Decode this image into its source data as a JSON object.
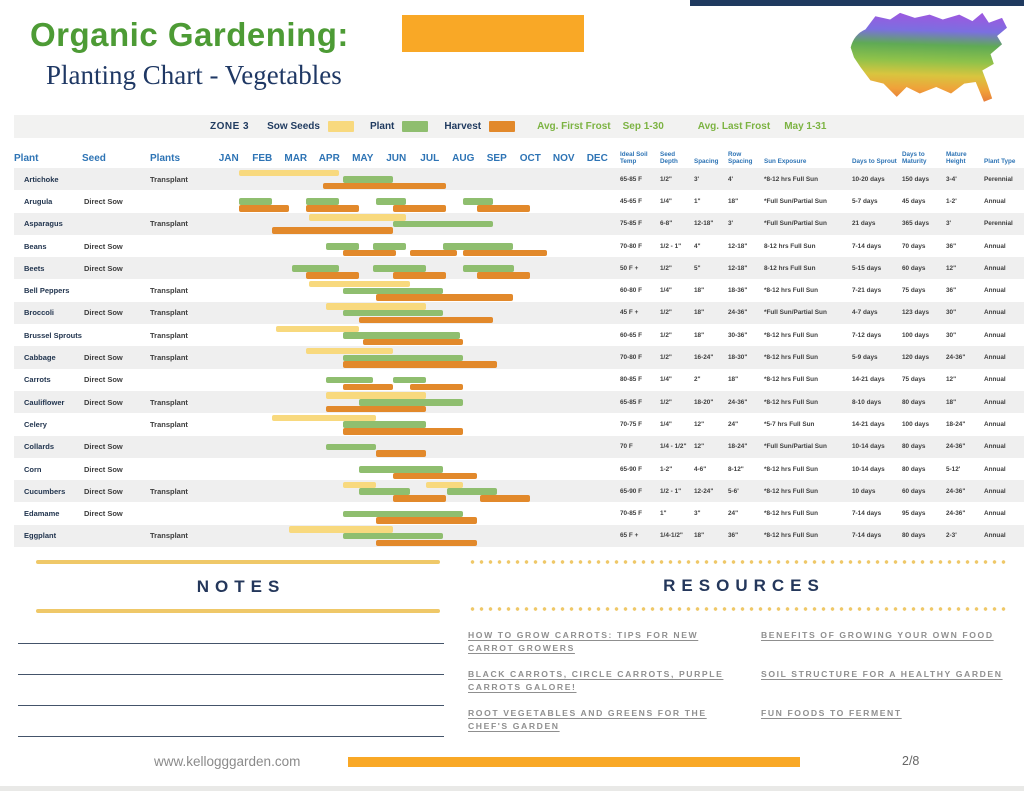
{
  "header": {
    "title": "Organic Gardening:",
    "subtitle": "Planting Chart - Vegetables"
  },
  "legend": {
    "zone": "ZONE 3",
    "sow_label": "Sow Seeds",
    "plant_label": "Plant",
    "harvest_label": "Harvest",
    "first_frost_label": "Avg. First Frost",
    "first_frost_value": "Sep 1-30",
    "last_frost_label": "Avg. Last Frost",
    "last_frost_value": "May 1-31"
  },
  "columns": {
    "left": [
      "Plant",
      "Seed",
      "Plants"
    ],
    "months": [
      "JAN",
      "FEB",
      "MAR",
      "APR",
      "MAY",
      "JUN",
      "JUL",
      "AUG",
      "SEP",
      "OCT",
      "NOV",
      "DEC"
    ],
    "right": [
      "Ideal Soil Temp",
      "Seed Depth",
      "Spacing",
      "Row Spacing",
      "Sun Exposure",
      "Days to Sprout",
      "Days to Maturity",
      "Mature Height",
      "Plant Type"
    ]
  },
  "colors": {
    "sow": "#f8d97e",
    "plant": "#8fbe6f",
    "harvest": "#e2892b",
    "accent_orange": "#f9a826",
    "title_green": "#4d9b35",
    "navy": "#1f3a5f",
    "header_blue": "#2e74b5",
    "frost_green": "#7cb342"
  },
  "rows": [
    {
      "name": "Artichoke",
      "seed": "",
      "plants": "Transplant",
      "temp": "65-85 F",
      "depth": "1/2\"",
      "spacing": "3'",
      "row_spacing": "4'",
      "sun": "*8-12 hrs Full Sun",
      "sprout": "10-20 days",
      "maturity": "150 days",
      "height": "3-4'",
      "type": "Perennial",
      "bars": [
        [
          "sow",
          0.8,
          3.8
        ],
        [
          "plant",
          3.9,
          5.4
        ],
        [
          "harvest",
          3.3,
          7.0
        ]
      ]
    },
    {
      "name": "Arugula",
      "seed": "Direct Sow",
      "plants": "",
      "temp": "45-65 F",
      "depth": "1/4\"",
      "spacing": "1\"",
      "row_spacing": "18\"",
      "sun": "*Full Sun/Partial Sun",
      "sprout": "5-7 days",
      "maturity": "45 days",
      "height": "1-2'",
      "type": "Annual",
      "bars": [
        [
          "plant",
          0.8,
          1.8
        ],
        [
          "plant",
          2.8,
          3.8
        ],
        [
          "plant",
          4.9,
          5.8
        ],
        [
          "plant",
          7.5,
          8.4
        ],
        [
          "harvest",
          0.8,
          2.3
        ],
        [
          "harvest",
          2.8,
          4.4
        ],
        [
          "harvest",
          5.4,
          7.0
        ],
        [
          "harvest",
          7.9,
          9.5
        ]
      ]
    },
    {
      "name": "Asparagus",
      "seed": "",
      "plants": "Transplant",
      "temp": "75-85 F",
      "depth": "6-8\"",
      "spacing": "12-18\"",
      "row_spacing": "3'",
      "sun": "*Full Sun/Partial Sun",
      "sprout": "21 days",
      "maturity": "365 days",
      "height": "3'",
      "type": "Perennial",
      "bars": [
        [
          "sow",
          2.9,
          5.8
        ],
        [
          "plant",
          5.4,
          8.4
        ],
        [
          "harvest",
          1.8,
          5.4
        ]
      ]
    },
    {
      "name": "Beans",
      "seed": "Direct Sow",
      "plants": "",
      "temp": "70-80 F",
      "depth": "1/2 - 1\"",
      "spacing": "4\"",
      "row_spacing": "12-18\"",
      "sun": "8-12 hrs Full Sun",
      "sprout": "7-14 days",
      "maturity": "70 days",
      "height": "36\"",
      "type": "Annual",
      "bars": [
        [
          "plant",
          3.4,
          4.4
        ],
        [
          "plant",
          4.8,
          5.8
        ],
        [
          "plant",
          6.9,
          9.0
        ],
        [
          "harvest",
          3.9,
          5.5
        ],
        [
          "harvest",
          5.9,
          7.3
        ],
        [
          "harvest",
          7.5,
          10.0
        ]
      ]
    },
    {
      "name": "Beets",
      "seed": "Direct Sow",
      "plants": "",
      "temp": "50 F +",
      "depth": "1/2\"",
      "spacing": "5\"",
      "row_spacing": "12-18\"",
      "sun": "8-12 hrs Full Sun",
      "sprout": "5-15 days",
      "maturity": "60 days",
      "height": "12\"",
      "type": "Annual",
      "bars": [
        [
          "plant",
          2.4,
          3.8
        ],
        [
          "plant",
          4.8,
          6.4
        ],
        [
          "plant",
          7.5,
          9.0
        ],
        [
          "harvest",
          2.8,
          4.4
        ],
        [
          "harvest",
          5.4,
          7.0
        ],
        [
          "harvest",
          7.9,
          9.5
        ]
      ]
    },
    {
      "name": "Bell Peppers",
      "seed": "",
      "plants": "Transplant",
      "temp": "60-80 F",
      "depth": "1/4\"",
      "spacing": "18\"",
      "row_spacing": "18-36\"",
      "sun": "*8-12 hrs Full Sun",
      "sprout": "7-21 days",
      "maturity": "75 days",
      "height": "36\"",
      "type": "Annual",
      "bars": [
        [
          "sow",
          2.9,
          5.9
        ],
        [
          "plant",
          3.9,
          6.9
        ],
        [
          "harvest",
          4.9,
          9.0
        ]
      ]
    },
    {
      "name": "Broccoli",
      "seed": "Direct Sow",
      "plants": "Transplant",
      "temp": "45 F +",
      "depth": "1/2\"",
      "spacing": "18\"",
      "row_spacing": "24-36\"",
      "sun": "*Full Sun/Partial Sun",
      "sprout": "4-7 days",
      "maturity": "123 days",
      "height": "30\"",
      "type": "Annual",
      "bars": [
        [
          "sow",
          3.4,
          6.4
        ],
        [
          "plant",
          3.9,
          6.9
        ],
        [
          "harvest",
          4.4,
          8.4
        ]
      ]
    },
    {
      "name": "Brussel Sprouts",
      "seed": "",
      "plants": "Transplant",
      "temp": "60-65 F",
      "depth": "1/2\"",
      "spacing": "18\"",
      "row_spacing": "30-36\"",
      "sun": "*8-12 hrs Full Sun",
      "sprout": "7-12 days",
      "maturity": "100 days",
      "height": "30\"",
      "type": "Annual",
      "bars": [
        [
          "sow",
          1.9,
          4.4
        ],
        [
          "plant",
          3.9,
          7.4
        ],
        [
          "harvest",
          4.5,
          7.5
        ]
      ]
    },
    {
      "name": "Cabbage",
      "seed": "Direct Sow",
      "plants": "Transplant",
      "temp": "70-80 F",
      "depth": "1/2\"",
      "spacing": "16-24\"",
      "row_spacing": "18-30\"",
      "sun": "*8-12 hrs Full Sun",
      "sprout": "5-9 days",
      "maturity": "120 days",
      "height": "24-36\"",
      "type": "Annual",
      "bars": [
        [
          "sow",
          2.8,
          5.4
        ],
        [
          "plant",
          3.9,
          7.5
        ],
        [
          "harvest",
          3.9,
          8.5
        ]
      ]
    },
    {
      "name": "Carrots",
      "seed": "Direct Sow",
      "plants": "",
      "temp": "80-85 F",
      "depth": "1/4\"",
      "spacing": "2\"",
      "row_spacing": "18\"",
      "sun": "*8-12 hrs Full Sun",
      "sprout": "14-21 days",
      "maturity": "75 days",
      "height": "12\"",
      "type": "Annual",
      "bars": [
        [
          "plant",
          3.4,
          4.8
        ],
        [
          "plant",
          5.4,
          6.4
        ],
        [
          "harvest",
          3.9,
          5.4
        ],
        [
          "harvest",
          5.9,
          7.5
        ]
      ]
    },
    {
      "name": "Cauliflower",
      "seed": "Direct Sow",
      "plants": "Transplant",
      "temp": "65-85 F",
      "depth": "1/2\"",
      "spacing": "18-20\"",
      "row_spacing": "24-36\"",
      "sun": "*8-12 hrs Full Sun",
      "sprout": "8-10 days",
      "maturity": "80 days",
      "height": "18\"",
      "type": "Annual",
      "bars": [
        [
          "sow",
          3.4,
          6.4
        ],
        [
          "plant",
          4.4,
          7.5
        ],
        [
          "harvest",
          3.4,
          6.4
        ]
      ]
    },
    {
      "name": "Celery",
      "seed": "",
      "plants": "Transplant",
      "temp": "70-75 F",
      "depth": "1/4\"",
      "spacing": "12\"",
      "row_spacing": "24\"",
      "sun": "*5-7 hrs Full Sun",
      "sprout": "14-21 days",
      "maturity": "100 days",
      "height": "18-24\"",
      "type": "Annual",
      "bars": [
        [
          "sow",
          1.8,
          4.9
        ],
        [
          "plant",
          3.9,
          6.4
        ],
        [
          "harvest",
          3.9,
          7.5
        ]
      ]
    },
    {
      "name": "Collards",
      "seed": "Direct Sow",
      "plants": "",
      "temp": "70 F",
      "depth": "1/4 - 1/2\"",
      "spacing": "12\"",
      "row_spacing": "18-24\"",
      "sun": "*Full Sun/Partial Sun",
      "sprout": "10-14 days",
      "maturity": "80 days",
      "height": "24-36\"",
      "type": "Annual",
      "bars": [
        [
          "plant",
          3.4,
          4.9
        ],
        [
          "harvest",
          4.9,
          6.4
        ]
      ]
    },
    {
      "name": "Corn",
      "seed": "Direct Sow",
      "plants": "",
      "temp": "65-90 F",
      "depth": "1-2\"",
      "spacing": "4-6\"",
      "row_spacing": "8-12\"",
      "sun": "*8-12 hrs Full Sun",
      "sprout": "10-14 days",
      "maturity": "80 days",
      "height": "5-12'",
      "type": "Annual",
      "bars": [
        [
          "plant",
          4.4,
          6.9
        ],
        [
          "harvest",
          5.4,
          7.9
        ]
      ]
    },
    {
      "name": "Cucumbers",
      "seed": "Direct Sow",
      "plants": "Transplant",
      "temp": "65-90 F",
      "depth": "1/2 - 1\"",
      "spacing": "12-24\"",
      "row_spacing": "5-6'",
      "sun": "*8-12 hrs Full Sun",
      "sprout": "10 days",
      "maturity": "60 days",
      "height": "24-36\"",
      "type": "Annual",
      "bars": [
        [
          "sow",
          3.9,
          4.9
        ],
        [
          "sow",
          6.4,
          7.5
        ],
        [
          "plant",
          4.4,
          5.9
        ],
        [
          "plant",
          7.0,
          8.5
        ],
        [
          "harvest",
          5.4,
          7.0
        ],
        [
          "harvest",
          8.0,
          9.5
        ]
      ]
    },
    {
      "name": "Edamame",
      "seed": "Direct Sow",
      "plants": "",
      "temp": "70-85 F",
      "depth": "1\"",
      "spacing": "3\"",
      "row_spacing": "24\"",
      "sun": "*8-12 hrs Full Sun",
      "sprout": "7-14 days",
      "maturity": "95 days",
      "height": "24-36\"",
      "type": "Annual",
      "bars": [
        [
          "plant",
          3.9,
          7.5
        ],
        [
          "harvest",
          4.9,
          7.9
        ]
      ]
    },
    {
      "name": "Eggplant",
      "seed": "",
      "plants": "Transplant",
      "temp": "65 F +",
      "depth": "1/4-1/2\"",
      "spacing": "18\"",
      "row_spacing": "36\"",
      "sun": "*8-12 hrs Full Sun",
      "sprout": "7-14 days",
      "maturity": "80 days",
      "height": "2-3'",
      "type": "Annual",
      "bars": [
        [
          "sow",
          2.3,
          5.4
        ],
        [
          "plant",
          3.9,
          6.9
        ],
        [
          "harvest",
          4.9,
          7.9
        ]
      ]
    }
  ],
  "notes": {
    "title": "NOTES",
    "line_count": 4
  },
  "resources": {
    "title": "RESOURCES",
    "links_left": [
      "HOW TO GROW CARROTS: TIPS FOR NEW CARROT GROWERS",
      "BLACK CARROTS, CIRCLE CARROTS, PURPLE CARROTS GALORE!",
      "ROOT VEGETABLES AND GREENS FOR THE CHEF'S GARDEN"
    ],
    "links_right": [
      "BENEFITS OF GROWING YOUR OWN FOOD",
      "SOIL STRUCTURE FOR A HEALTHY GARDEN",
      "FUN FOODS TO FERMENT"
    ]
  },
  "footer": {
    "url": "www.kellogggarden.com",
    "page": "2/8"
  }
}
